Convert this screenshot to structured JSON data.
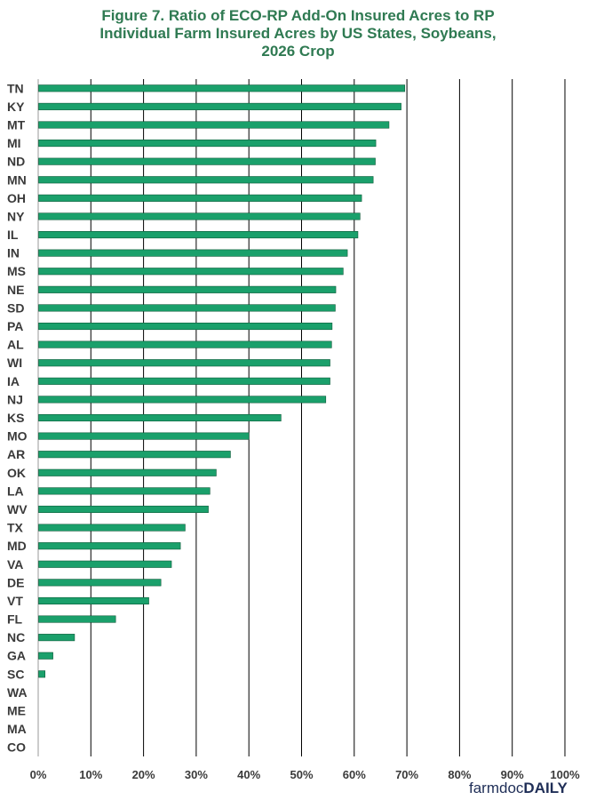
{
  "chart_data": {
    "type": "bar",
    "orientation": "horizontal",
    "title_lines": [
      "Figure 7.  Ratio of ECO-RP Add-On Insured Acres to RP",
      "Individual Farm Insured Acres by US States, Soybeans,",
      "2026 Crop"
    ],
    "categories": [
      "TN",
      "KY",
      "MT",
      "MI",
      "ND",
      "MN",
      "OH",
      "NY",
      "IL",
      "IN",
      "MS",
      "NE",
      "SD",
      "PA",
      "AL",
      "WI",
      "IA",
      "NJ",
      "KS",
      "MO",
      "AR",
      "OK",
      "LA",
      "WV",
      "TX",
      "MD",
      "VA",
      "DE",
      "VT",
      "FL",
      "NC",
      "GA",
      "SC",
      "WA",
      "ME",
      "MA",
      "CO"
    ],
    "values": [
      69.6,
      68.9,
      66.6,
      64.1,
      64.0,
      63.6,
      61.4,
      61.1,
      60.7,
      58.7,
      57.9,
      56.5,
      56.4,
      55.8,
      55.7,
      55.4,
      55.4,
      54.6,
      46.1,
      40.0,
      36.5,
      33.8,
      32.6,
      32.3,
      27.9,
      27.0,
      25.3,
      23.3,
      21.0,
      14.7,
      6.9,
      2.8,
      1.3,
      0,
      0,
      0,
      0
    ],
    "xlim": [
      0,
      100
    ],
    "x_ticks": [
      "0%",
      "10%",
      "20%",
      "30%",
      "40%",
      "50%",
      "60%",
      "70%",
      "80%",
      "90%",
      "100%"
    ],
    "grid": "vertical",
    "bar_color": "#1aa06b",
    "bar_border": "#0e5b3a",
    "gridline_color": "#000000",
    "title_color": "#2f7a52"
  },
  "logo": {
    "part1": "farmdoc",
    "part2": "DAILY",
    "color": "#1f2e57"
  }
}
